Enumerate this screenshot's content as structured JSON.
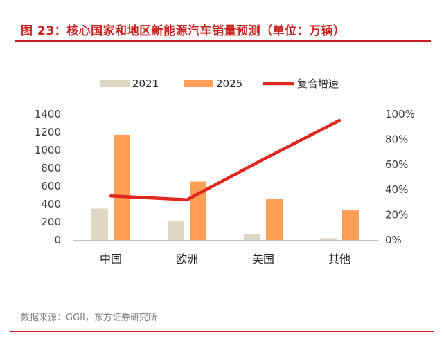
{
  "title": "图 23：核心国家和地区新能源汽车销量预测（单位：万辆）",
  "source": "数据来源：GGII，东方证券研究所",
  "colors": {
    "accent": "#C9211E",
    "series_2021": "#DDD7C4",
    "series_2025": "#FF9F55",
    "growth_line": "#E0261F"
  },
  "chart_data": {
    "type": "bar",
    "title": "核心国家和地区新能源汽车销量预测（单位：万辆）",
    "categories": [
      "中国",
      "欧洲",
      "美国",
      "其他"
    ],
    "series": [
      {
        "name": "2021",
        "type": "bar",
        "axis": "left",
        "values": [
          350,
          210,
          65,
          20
        ]
      },
      {
        "name": "2025",
        "type": "bar",
        "axis": "left",
        "values": [
          1170,
          650,
          455,
          330
        ]
      },
      {
        "name": "复合增速",
        "type": "line",
        "axis": "right",
        "values": [
          0.35,
          0.32,
          0.64,
          0.95
        ]
      }
    ],
    "y_left": {
      "min": 0,
      "max": 1400,
      "ticks": [
        0,
        200,
        400,
        600,
        800,
        1000,
        1200,
        1400
      ]
    },
    "y_right": {
      "min": 0,
      "max": 1.0,
      "ticks": [
        "0%",
        "20%",
        "40%",
        "60%",
        "80%",
        "100%"
      ]
    },
    "legend": [
      "2021",
      "2025",
      "复合增速"
    ],
    "legend_position": "top-center",
    "grid": false
  }
}
